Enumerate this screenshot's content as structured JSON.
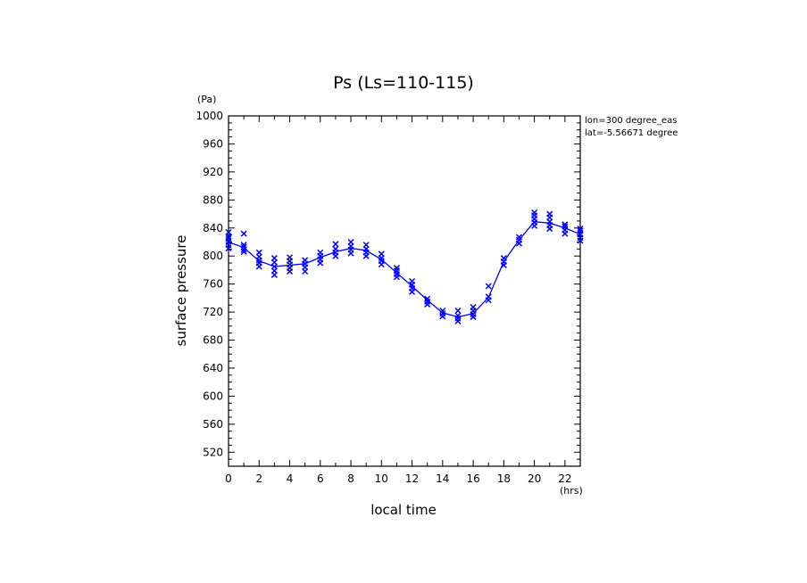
{
  "chart_data": {
    "type": "scatter",
    "title": "Ps (Ls=110-115)",
    "xlabel": "local time",
    "ylabel": "surface pressure",
    "x_unit": "(hrs)",
    "y_unit": "(Pa)",
    "xlim": [
      0,
      23
    ],
    "ylim": [
      500,
      1000
    ],
    "x_ticks": [
      0,
      2,
      4,
      6,
      8,
      10,
      12,
      14,
      16,
      18,
      20,
      22
    ],
    "y_ticks": [
      520,
      560,
      600,
      640,
      680,
      720,
      760,
      800,
      840,
      880,
      920,
      960,
      1000
    ],
    "annotations": [
      "lon=300 degree_eas",
      "lat=-5.56671 degree"
    ],
    "color": "#0000ff",
    "mean_line": {
      "x": [
        0,
        1,
        2,
        3,
        4,
        5,
        6,
        7,
        8,
        9,
        10,
        11,
        12,
        13,
        14,
        15,
        16,
        17,
        18,
        19,
        20,
        21,
        22,
        23
      ],
      "y": [
        820,
        812,
        793,
        785,
        787,
        789,
        798,
        806,
        811,
        808,
        795,
        776,
        757,
        737,
        719,
        713,
        718,
        741,
        792,
        823,
        849,
        847,
        840,
        831
      ]
    },
    "samples": {
      "x": [
        0,
        1,
        2,
        3,
        4,
        5,
        6,
        7,
        8,
        9,
        10,
        11,
        12,
        13,
        14,
        15,
        16,
        17,
        18,
        19,
        20,
        21,
        22,
        23
      ],
      "y": [
        [
          811,
          816,
          820,
          825,
          828,
          834
        ],
        [
          806,
          809,
          813,
          816,
          832
        ],
        [
          785,
          790,
          794,
          799,
          805
        ],
        [
          773,
          779,
          785,
          791,
          797
        ],
        [
          778,
          783,
          788,
          793,
          798
        ],
        [
          778,
          784,
          789,
          794
        ],
        [
          790,
          795,
          800,
          805
        ],
        [
          800,
          805,
          810,
          817
        ],
        [
          804,
          809,
          814,
          820
        ],
        [
          800,
          805,
          810,
          816
        ],
        [
          788,
          793,
          797,
          803
        ],
        [
          770,
          774,
          779,
          783
        ],
        [
          749,
          754,
          759,
          764
        ],
        [
          731,
          735,
          739
        ],
        [
          714,
          718,
          722
        ],
        [
          707,
          711,
          715,
          722
        ],
        [
          713,
          717,
          722,
          727
        ],
        [
          737,
          742,
          757
        ],
        [
          787,
          792,
          797
        ],
        [
          818,
          823,
          827
        ],
        [
          843,
          848,
          853,
          858,
          862
        ],
        [
          839,
          844,
          849,
          855,
          860
        ],
        [
          832,
          837,
          842,
          845
        ],
        [
          822,
          826,
          831,
          836,
          839
        ]
      ]
    }
  }
}
